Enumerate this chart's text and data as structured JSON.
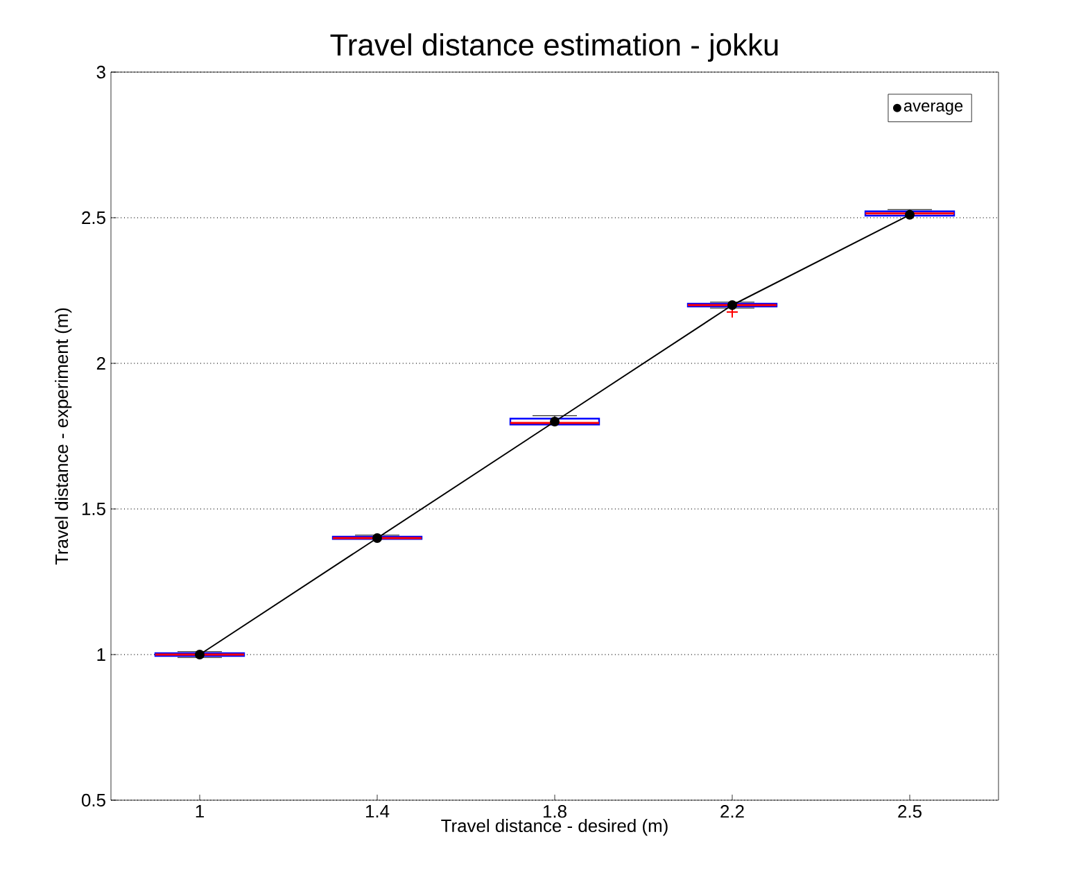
{
  "chart_data": {
    "type": "box",
    "title": "Travel distance estimation - jokku",
    "xlabel": "Travel distance - desired (m)",
    "ylabel": "Travel distance - experiment (m)",
    "categories": [
      "1",
      "1.4",
      "1.8",
      "2.2",
      "2.5"
    ],
    "ylim": [
      0.5,
      3
    ],
    "yticks": [
      0.5,
      1,
      1.5,
      2,
      2.5,
      3
    ],
    "grid": "y",
    "legend": "top right",
    "series": [
      {
        "type": "box",
        "color": "#0000ff",
        "boxes": [
          {
            "low": 0.99,
            "q1": 0.995,
            "median": 1.0,
            "q3": 1.005,
            "high": 1.01
          },
          {
            "low": 1.397,
            "q1": 1.397,
            "median": 1.4,
            "q3": 1.405,
            "high": 1.41
          },
          {
            "low": 1.79,
            "q1": 1.79,
            "median": 1.795,
            "q3": 1.81,
            "high": 1.82
          },
          {
            "low": 2.19,
            "q1": 2.195,
            "median": 2.2,
            "q3": 2.205,
            "high": 2.21,
            "outliers": [
              2.176
            ]
          },
          {
            "low": 2.507,
            "q1": 2.507,
            "median": 2.515,
            "q3": 2.522,
            "high": 2.528
          }
        ]
      },
      {
        "type": "line",
        "name": "average",
        "color": "#000000",
        "marker": "circle",
        "values": [
          1.0,
          1.4,
          1.8,
          2.2,
          2.51
        ]
      }
    ]
  }
}
